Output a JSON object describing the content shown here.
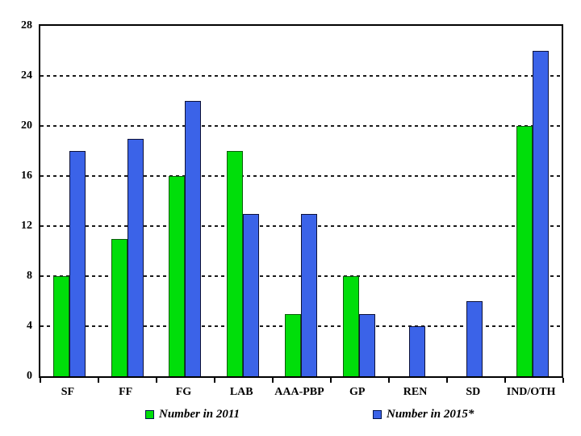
{
  "chart_data": {
    "type": "bar",
    "categories": [
      "SF",
      "FF",
      "FG",
      "LAB",
      "AAA-PBP",
      "GP",
      "REN",
      "SD",
      "IND/OTH"
    ],
    "series": [
      {
        "name": "Number in 2011",
        "color": "#00DE0A",
        "border_color": "#0c5c0c",
        "values": [
          8,
          11,
          16,
          18,
          5,
          8,
          0,
          0,
          20
        ]
      },
      {
        "name": "Number in 2015*",
        "color": "#3B63E8",
        "border_color": "#0e1238",
        "values": [
          18,
          19,
          22,
          13,
          13,
          5,
          4,
          6,
          26
        ]
      }
    ],
    "title": "",
    "xlabel": "",
    "ylabel": "",
    "ylim": [
      0,
      28
    ],
    "yticks": [
      0,
      4,
      8,
      12,
      16,
      20,
      24,
      28
    ],
    "grid": "horizontal-dashed",
    "grid_color": "#1a1a1a",
    "axis_color": "#000000",
    "legend_position": "bottom"
  },
  "legend": {
    "items": [
      {
        "label": "Number in 2011"
      },
      {
        "label": "Number in 2015*"
      }
    ]
  }
}
